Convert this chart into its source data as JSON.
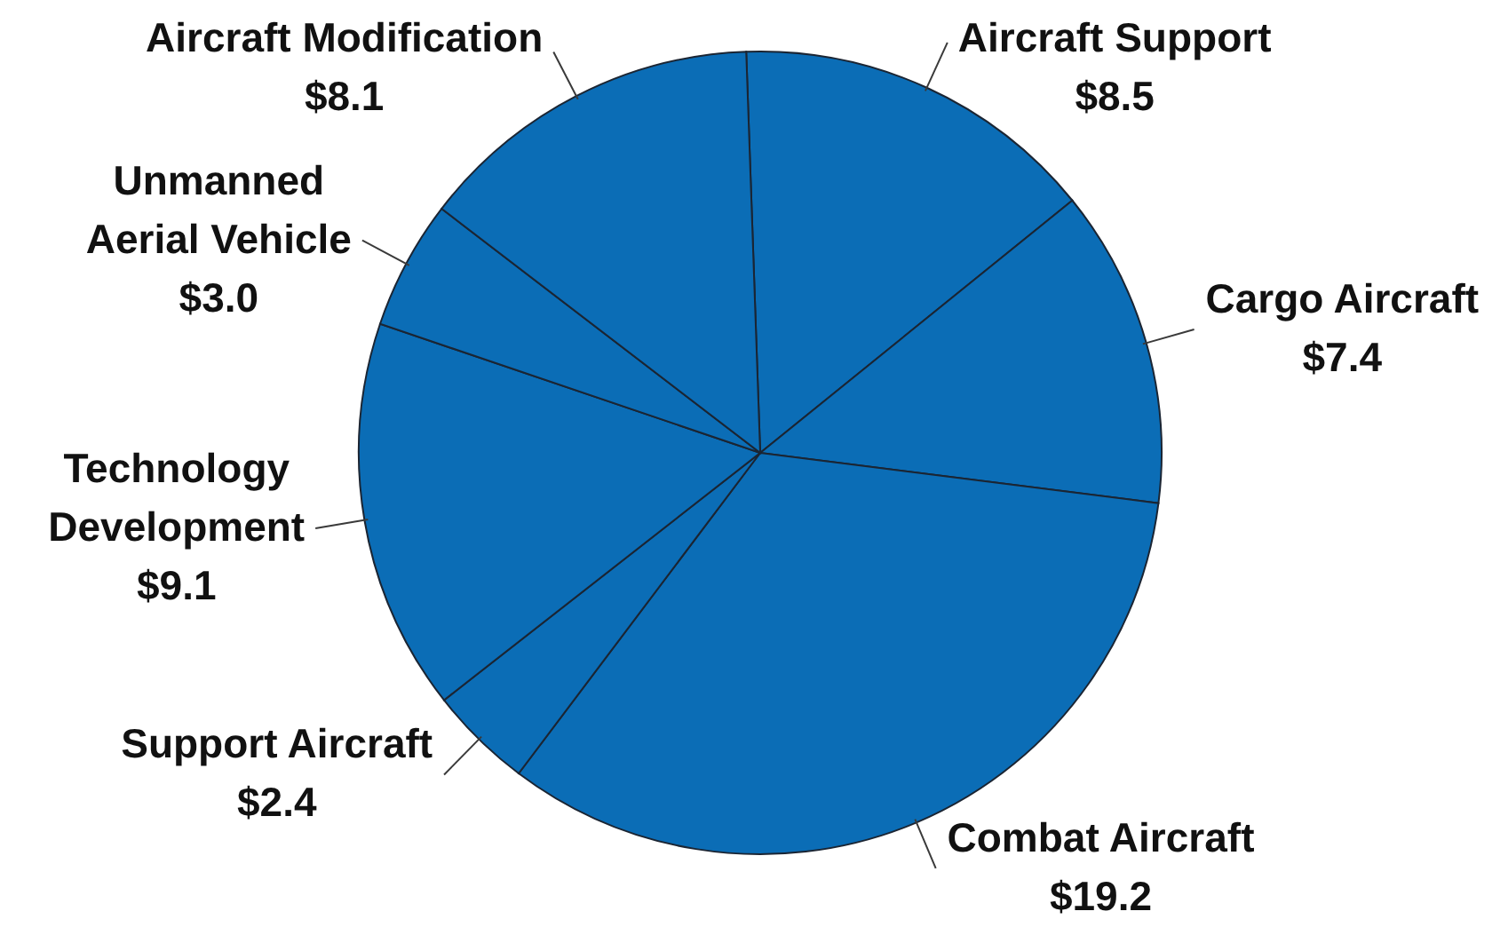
{
  "chart_data": {
    "type": "pie",
    "categories": [
      "Aircraft Support",
      "Cargo Aircraft",
      "Combat Aircraft",
      "Support Aircraft",
      "Technology Development",
      "Unmanned Aerial Vehicle",
      "Aircraft Modification"
    ],
    "values": [
      8.5,
      7.4,
      19.2,
      2.4,
      9.1,
      3.0,
      8.1
    ],
    "value_labels": [
      "$8.5",
      "$7.4",
      "$19.2",
      "$2.4",
      "$9.1",
      "$3.0",
      "$8.1"
    ],
    "colors": [
      "#0b6db6",
      "#0b6db6",
      "#0b6db6",
      "#0b6db6",
      "#0b6db6",
      "#0b6db6",
      "#0b6db6"
    ]
  }
}
